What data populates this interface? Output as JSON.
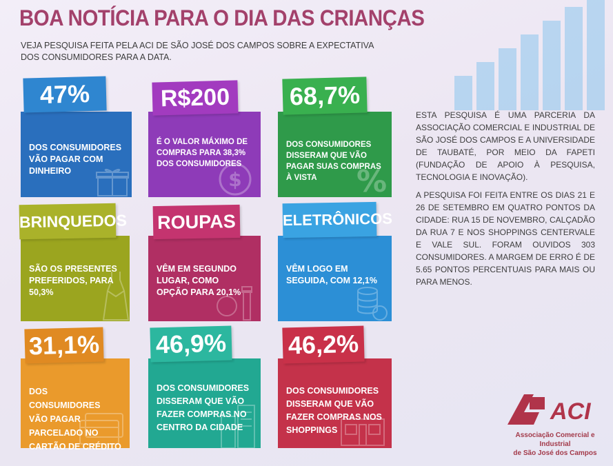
{
  "header": {
    "title": "BOA NOTÍCIA PARA O DIA DAS CRIANÇAS",
    "subtitle_line1": "VEJA PESQUISA FEITA PELA ACI DE SÃO JOSÉ DOS CAMPOS SOBRE A EXPECTATIVA",
    "subtitle_line2": "DOS CONSUMIDORES PARA A DATA."
  },
  "tiles": [
    {
      "tag": "47%",
      "text": "DOS CONSUMIDORES VÃO PAGAR COM DINHEIRO",
      "color": "#2a6fbd",
      "tag_color": "#2f86d0",
      "icon": "gift-icon"
    },
    {
      "tag": "R$200",
      "text": "É O VALOR MÁXIMO DE COMPRAS PARA 38,3% DOS CONSUMIDORES",
      "color": "#8e3bb8",
      "tag_color": "#a23bbf",
      "icon": "dollar-coin-icon"
    },
    {
      "tag": "68,7%",
      "text": "DOS CONSUMIDORES DISSERAM QUE VÃO PAGAR SUAS COMPRAS À VISTA",
      "color": "#2f9a4a",
      "tag_color": "#39b04f",
      "icon": "percent-icon"
    },
    {
      "tag": "BRINQUEDOS",
      "text": "SÃO OS PRESENTES PREFERIDOS, PARA 50,3%",
      "color": "#9ba51f",
      "tag_color": "#aab22a",
      "icon": "dress-icon"
    },
    {
      "tag": "ROUPAS",
      "text": "VÊM EM SEGUNDO LUGAR, COMO OPÇÃO PARA 20,1%",
      "color": "#b02f63",
      "tag_color": "#c4346f",
      "icon": "cosmetics-icon"
    },
    {
      "tag": "ELETRÔNICOS",
      "text": "VÊM LOGO EM SEGUIDA, COM 12,1%",
      "color": "#2c8fd6",
      "tag_color": "#3aa3e2",
      "icon": "coins-stack-icon"
    },
    {
      "tag": "31,1%",
      "text": "DOS CONSUMIDORES VÃO PAGAR PARCELADO NO CARTÃO DE CRÉDITO",
      "color": "#ea9a2c",
      "tag_color": "#e08a22",
      "icon": "credit-card-icon"
    },
    {
      "tag": "46,9%",
      "text": "DOS CONSUMIDORES DISSERAM QUE VÃO FAZER COMPRAS NO CENTRO DA CIDADE",
      "color": "#22a892",
      "tag_color": "#2cb79f",
      "icon": "buildings-icon"
    },
    {
      "tag": "46,2%",
      "text": "DOS CONSUMIDORES DISSERAM QUE VÃO FAZER COMPRAS NOS SHOPPINGS",
      "color": "#c4324a",
      "tag_color": "#c93149",
      "icon": "shopping-mall-icon"
    }
  ],
  "side": {
    "para1": "ESTA PESQUISA É UMA PARCERIA DA ASSOCIAÇÃO COMERCIAL E INDUSTRIAL DE SÃO JOSÉ DOS CAMPOS E A UNIVERSIDADE DE TAUBATÉ, POR MEIO DA FAPETI (FUNDAÇÃO DE APOIO À PESQUISA, TECNOLOGIA E INOVAÇÃO).",
    "para2": "A PESQUISA FOI FEITA ENTRE OS DIAS 21 E 26 DE SETEMBRO EM QUATRO PONTOS DA CIDADE: RUA 15 DE NOVEMBRO, CALÇADÃO DA RUA 7 E NOS SHOPPINGS CENTERVALE E VALE SUL. FORAM OUVIDOS 303 CONSUMIDORES. A MARGEM DE ERRO É DE 5.65 PONTOS PERCENTUAIS PARA MAIS OU PARA MENOS."
  },
  "logo": {
    "mark": "ACI",
    "line1": "Associação Comercial e Industrial",
    "line2": "de São José dos Campos",
    "color": "#b0344a"
  }
}
